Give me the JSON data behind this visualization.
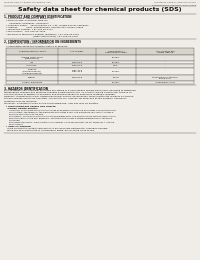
{
  "bg_color": "#f0ede8",
  "title": "Safety data sheet for chemical products (SDS)",
  "header_left": "Product Name: Lithium Ion Battery Cell",
  "header_right_line1": "Substance Control: SDS-049-00010",
  "header_right_line2": "Establishment / Revision: Dec.7.2018",
  "section1_title": "1. PRODUCT AND COMPANY IDENTIFICATION",
  "section1_lines": [
    "  • Product name: Lithium Ion Battery Cell",
    "  • Product code: Cylindrical-type cell",
    "       UR18650J, UR18650L, UR18650A",
    "  • Company name:    Sanyo Electric Co., Ltd., Mobile Energy Company",
    "  • Address:           2001, Kamiakasaka, Sumoto-City, Hyogo, Japan",
    "  • Telephone number: +81-799-26-4111",
    "  • Fax number:  +81-799-26-4129",
    "  • Emergency telephone number (daytime): +81-799-26-3942",
    "                                       (Night and holiday) +81-799-26-4101"
  ],
  "section2_title": "2. COMPOSITION / INFORMATION ON INGREDIENTS",
  "section2_intro": "  • Substance or preparation: Preparation",
  "section2_sub": "  • Information about the chemical nature of product:",
  "table_col_headers": [
    "Chemical/chemical name",
    "CAS number",
    "Concentration /\nConcentration range",
    "Classification and\nhazard labeling"
  ],
  "table_rows": [
    [
      "Lithium cobalt oxide\n(LiMnCoNiO2)",
      "-",
      "30-60%",
      "-"
    ],
    [
      "Iron",
      "7439-89-6",
      "15-25%",
      "-"
    ],
    [
      "Aluminum",
      "7429-90-5",
      "2-8%",
      "-"
    ],
    [
      "Graphite\n(Natural graphite)\n(Artificial graphite)",
      "7782-42-5\n7782-42-5",
      "10-20%",
      "-"
    ],
    [
      "Copper",
      "7440-50-8",
      "5-15%",
      "Sensitization of the skin\ngroup No.2"
    ],
    [
      "Organic electrolyte",
      "-",
      "10-20%",
      "Inflammable liquid"
    ]
  ],
  "section3_title": "3. HAZARDS IDENTIFICATION",
  "section3_para": [
    "For the battery cell, chemical materials are stored in a hermetically sealed metal case, designed to withstand",
    "temperature changes and pressure changes during normal use. As a result, during normal use, there is no",
    "physical danger of ignition or explosion and thermal danger of hazardous materials leakage.",
    "However, if exposed to a fire, added mechanical shocks, decomposes, when electrolyte releases by misuse,",
    "the gas release cannot be operated. The battery cell case will be breached at fire-pertains, hazardous",
    "materials may be released.",
    "Moreover, if heated strongly by the surrounding fire, ionic gas may be emitted."
  ],
  "section3_sub1": "  • Most important hazard and effects:",
  "section3_human": "    Human health effects:",
  "section3_human_lines": [
    "        Inhalation: The release of the electrolyte has an anesthesia action and stimulates in respiratory tract.",
    "        Skin contact: The release of the electrolyte stimulates a skin. The electrolyte skin contact causes a",
    "        sore and stimulation on the skin.",
    "        Eye contact: The release of the electrolyte stimulates eyes. The electrolyte eye contact causes a sore",
    "        and stimulation on the eye. Especially, substance that causes a strong inflammation of the eye is",
    "        contained.",
    "        Environmental effects: Since a battery cell remains in the environment, do not throw out it into the",
    "        environment."
  ],
  "section3_specific": "  • Specific hazards:",
  "section3_specific_lines": [
    "    If the electrolyte contacts with water, it will generate detrimental hydrogen fluoride.",
    "    Since the seal electrolyte is inflammable liquid, do not bring close to fire."
  ]
}
